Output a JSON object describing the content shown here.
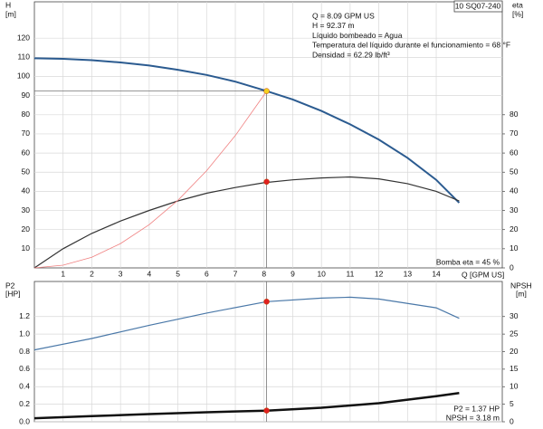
{
  "chart_data": [
    {
      "type": "line",
      "title": "10 SQ07-240",
      "ylabel": "H",
      "yunit": "[m]",
      "y2label": "eta",
      "y2unit": "[%]",
      "xlabel": "Q [GPM US]",
      "xlim": [
        0,
        16.3
      ],
      "xticks": [
        1,
        2,
        3,
        4,
        5,
        6,
        7,
        8,
        9,
        10,
        11,
        12,
        13,
        14
      ],
      "ylim": [
        0,
        139
      ],
      "yticks": [
        10,
        20,
        30,
        40,
        50,
        60,
        70,
        80,
        90,
        100,
        110,
        120
      ],
      "y2lim": [
        0,
        139
      ],
      "y2ticks": [
        0,
        10,
        20,
        30,
        40,
        50,
        60,
        70,
        80
      ],
      "grid": true,
      "annotations": [
        "Q = 8.09 GPM US",
        "H = 92.37 m",
        "Líquido bombeado = Agua",
        "Temperatura del líquido durante el funcionamiento = 68 °F",
        "Densidad = 62.29 lb/ft³"
      ],
      "footnote": "Bomba eta = 45 %",
      "series": [
        {
          "color": "#2b5b90",
          "line_width": 2,
          "axis": "y",
          "x": [
            0,
            1,
            2,
            3,
            4,
            5,
            6,
            7,
            8,
            9,
            10,
            11,
            12,
            13,
            14,
            14.8
          ],
          "values": [
            109.5,
            109.2,
            108.5,
            107.3,
            105.7,
            103.5,
            100.8,
            97.3,
            92.8,
            88,
            82,
            75,
            67,
            57.5,
            46,
            34
          ]
        },
        {
          "color": "#333333",
          "line_width": 1.2,
          "axis": "y2",
          "x": [
            0,
            1,
            2,
            3,
            4,
            5,
            6,
            7,
            8,
            9,
            10,
            11,
            12,
            13,
            14,
            14.8
          ],
          "values": [
            0,
            10,
            18,
            24.5,
            30,
            35,
            39,
            42,
            44.5,
            46,
            47,
            47.5,
            46.5,
            44,
            40,
            35
          ]
        },
        {
          "color": "#f08080",
          "line_width": 0.8,
          "axis": "y",
          "x": [
            0,
            1,
            2,
            3,
            4,
            5,
            6,
            7,
            8,
            8.09
          ],
          "values": [
            0,
            1.4,
            5.6,
            12.7,
            22.6,
            35.3,
            50.8,
            69.1,
            90.3,
            92.37
          ]
        }
      ],
      "markers": [
        {
          "x": 8.09,
          "y": 92.37,
          "color": "#f5d020",
          "axis": "y"
        },
        {
          "x": 8.09,
          "y": 45,
          "color": "#e02020",
          "axis": "y2"
        }
      ]
    },
    {
      "type": "line",
      "ylabel": "P2",
      "yunit": "[HP]",
      "y2label": "NPSH",
      "y2unit": "[m]",
      "xlim": [
        0,
        16.3
      ],
      "ylim": [
        0,
        1.6
      ],
      "yticks": [
        {
          "value": 0,
          "label": "0.0"
        },
        0.2,
        0.4,
        0.6,
        0.8,
        {
          "value": 1,
          "label": "1.0"
        },
        1.2
      ],
      "y2lim": [
        0,
        40
      ],
      "y2ticks": [
        0,
        5,
        10,
        15,
        20,
        25,
        30
      ],
      "grid": true,
      "annotations": [
        "P2 = 1.37 HP",
        "NPSH = 3.18 m"
      ],
      "series": [
        {
          "color": "#4a78a8",
          "line_width": 1.2,
          "axis": "y",
          "x": [
            0,
            2,
            4,
            6,
            8.09,
            10,
            11,
            12,
            14,
            14.8
          ],
          "values": [
            0.82,
            0.95,
            1.1,
            1.24,
            1.37,
            1.41,
            1.42,
            1.4,
            1.3,
            1.18
          ]
        },
        {
          "color": "#111111",
          "line_width": 2.5,
          "axis": "y2",
          "x": [
            0,
            2,
            4,
            6,
            8.09,
            10,
            12,
            14,
            14.8
          ],
          "values": [
            1,
            1.6,
            2.2,
            2.7,
            3.18,
            4,
            5.3,
            7.3,
            8.2
          ]
        }
      ],
      "markers": [
        {
          "x": 8.09,
          "y": 1.37,
          "color": "#e02020",
          "axis": "y"
        },
        {
          "x": 8.09,
          "y": 3.18,
          "color": "#e02020",
          "axis": "y2"
        }
      ]
    }
  ]
}
